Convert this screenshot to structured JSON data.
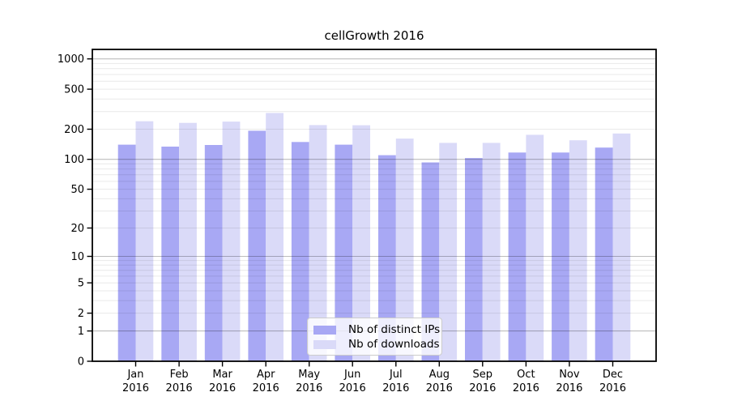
{
  "title": "cellGrowth 2016",
  "chart_data": {
    "type": "bar",
    "title": "cellGrowth 2016",
    "year_label": "2016",
    "categories": [
      "Jan",
      "Feb",
      "Mar",
      "Apr",
      "May",
      "Jun",
      "Jul",
      "Aug",
      "Sep",
      "Oct",
      "Nov",
      "Dec"
    ],
    "series": [
      {
        "name": "Nb of distinct IPs",
        "color": "#a8a8f4",
        "values": [
          140,
          134,
          139,
          193,
          149,
          140,
          110,
          93,
          103,
          117,
          117,
          131
        ]
      },
      {
        "name": "Nb of downloads",
        "color": "#dadaf8",
        "values": [
          240,
          231,
          238,
          290,
          220,
          219,
          161,
          146,
          146,
          176,
          155,
          181
        ]
      }
    ],
    "y_scale": "log10(1+v)",
    "y_ticks": [
      0,
      1,
      2,
      5,
      10,
      20,
      50,
      100,
      200,
      500,
      1000
    ],
    "y_major_gridlines": [
      1,
      10,
      100,
      1000
    ],
    "ylim": [
      0,
      1240
    ],
    "grid": true,
    "legend_position": "lower-center",
    "colors": {
      "background": "#ffffff",
      "axis": "#000000",
      "tick_label": "#000000",
      "major_grid": "rgba(0,0,0,0.26)",
      "minor_grid": "rgba(0,0,0,0.085)"
    }
  }
}
